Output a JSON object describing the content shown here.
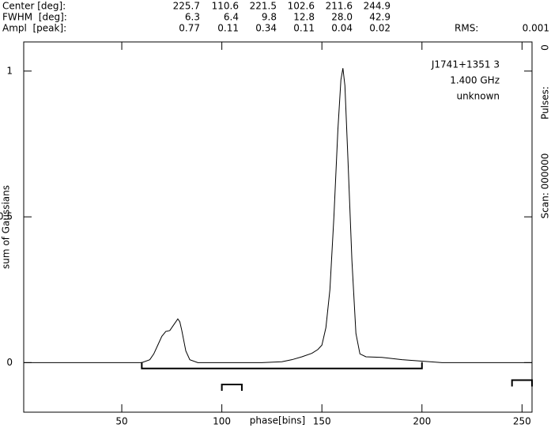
{
  "chart_data": {
    "type": "line",
    "header": {
      "rows": [
        {
          "label": "Center [deg]:",
          "values": [
            "225.7",
            "110.6",
            "221.5",
            "102.6",
            "211.6",
            "244.9"
          ]
        },
        {
          "label": "FWHM  [deg]:",
          "values": [
            "6.3",
            "6.4",
            "9.8",
            "12.8",
            "28.0",
            "42.9"
          ]
        },
        {
          "label": "Ampl  [peak]:",
          "values": [
            "0.77",
            "0.11",
            "0.34",
            "0.11",
            "0.04",
            "0.02"
          ]
        }
      ],
      "rms_label": "RMS:",
      "rms_value": "0.001"
    },
    "side_texts": [
      "0",
      "Pulses:",
      "Scan: 000000"
    ],
    "legend_lines": [
      "J1741+1351 3",
      "1.400 GHz",
      "unknown"
    ],
    "x_label": "phase[bins]",
    "y_label": "sum of Gaussians",
    "xlim": [
      1,
      255
    ],
    "ylim": [
      -0.17,
      1.1
    ],
    "xticks": [
      50,
      100,
      150,
      200,
      250
    ],
    "yticks": [
      0,
      0.5,
      1
    ],
    "color": "#000000",
    "x": [
      1,
      60,
      64,
      66,
      68,
      70,
      72,
      74,
      76,
      78,
      79,
      80,
      82,
      84,
      88,
      120,
      130,
      135,
      140,
      145,
      148,
      150,
      152,
      154,
      156,
      158,
      159.5,
      160.5,
      161.5,
      163,
      165,
      167,
      169,
      172,
      180,
      190,
      200,
      210,
      255
    ],
    "values": [
      0,
      0,
      0.01,
      0.03,
      0.06,
      0.09,
      0.107,
      0.11,
      0.13,
      0.15,
      0.14,
      0.11,
      0.04,
      0.01,
      0,
      0,
      0.003,
      0.01,
      0.02,
      0.032,
      0.045,
      0.06,
      0.12,
      0.25,
      0.5,
      0.8,
      0.97,
      1.01,
      0.95,
      0.7,
      0.35,
      0.1,
      0.03,
      0.02,
      0.018,
      0.01,
      0.005,
      0,
      0
    ],
    "brackets": [
      {
        "from": 60,
        "to": 200,
        "level": -0.02,
        "dir": 1
      },
      {
        "from": 100,
        "to": 110,
        "level": -0.075,
        "dir": -1
      },
      {
        "from": 245,
        "to": 255,
        "level": -0.06,
        "dir": -1
      }
    ]
  }
}
